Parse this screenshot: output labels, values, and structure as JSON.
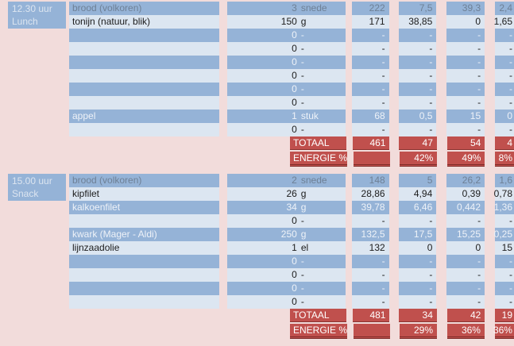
{
  "palette": {
    "background": "#f2dcdb",
    "row_dark": "#95b3d7",
    "row_light": "#dce6f1",
    "total_red": "#c0504d",
    "total_border": "#7e2b28",
    "text_on_dark": "#eef2f8",
    "text_on_light": "#1c1c1c",
    "text_muted": "#6e8096"
  },
  "sections": [
    {
      "time": "12.30 uur",
      "meal": "Lunch",
      "rows": [
        {
          "name": "brood (volkoren)",
          "qty": "3",
          "unit": "snede",
          "vals": [
            "222",
            "7,5",
            "39,3",
            "2,4"
          ],
          "shade": "dark",
          "muted": true
        },
        {
          "name": "tonijn (natuur, blik)",
          "qty": "150",
          "unit": "g",
          "vals": [
            "171",
            "38,85",
            "0",
            "1,65"
          ],
          "shade": "light",
          "muted": false
        },
        {
          "name": "",
          "qty": "0",
          "unit": "-",
          "vals": [
            "-",
            "-",
            "-",
            "-"
          ],
          "shade": "dark",
          "muted": false
        },
        {
          "name": "",
          "qty": "0",
          "unit": "-",
          "vals": [
            "-",
            "-",
            "-",
            "-"
          ],
          "shade": "light",
          "muted": false
        },
        {
          "name": "",
          "qty": "0",
          "unit": "-",
          "vals": [
            "-",
            "-",
            "-",
            "-"
          ],
          "shade": "dark",
          "muted": false
        },
        {
          "name": "",
          "qty": "0",
          "unit": "-",
          "vals": [
            "-",
            "-",
            "-",
            "-"
          ],
          "shade": "light",
          "muted": false
        },
        {
          "name": "",
          "qty": "0",
          "unit": "-",
          "vals": [
            "-",
            "-",
            "-",
            "-"
          ],
          "shade": "dark",
          "muted": false
        },
        {
          "name": "",
          "qty": "0",
          "unit": "-",
          "vals": [
            "-",
            "-",
            "-",
            "-"
          ],
          "shade": "light",
          "muted": false
        },
        {
          "name": "appel",
          "qty": "1",
          "unit": "stuk",
          "vals": [
            "68",
            "0,5",
            "15",
            "0"
          ],
          "shade": "dark",
          "muted": false
        },
        {
          "name": "",
          "qty": "0",
          "unit": "-",
          "vals": [
            "-",
            "-",
            "-",
            "-"
          ],
          "shade": "light",
          "muted": false
        }
      ],
      "total_label": "TOTAAL",
      "total_vals": [
        "461",
        "47",
        "54",
        "4"
      ],
      "energy_label": "ENERGIE %",
      "energy_vals": [
        "",
        "42%",
        "49%",
        "8%"
      ]
    },
    {
      "time": "15.00 uur",
      "meal": "Snack",
      "rows": [
        {
          "name": "brood (volkoren)",
          "qty": "2",
          "unit": "snede",
          "vals": [
            "148",
            "5",
            "26,2",
            "1,6"
          ],
          "shade": "dark",
          "muted": true
        },
        {
          "name": "kipfilet",
          "qty": "26",
          "unit": "g",
          "vals": [
            "28,86",
            "4,94",
            "0,39",
            "0,78"
          ],
          "shade": "light",
          "muted": false
        },
        {
          "name": "kalkoenfilet",
          "qty": "34",
          "unit": "g",
          "vals": [
            "39,78",
            "6,46",
            "0,442",
            "1,36"
          ],
          "shade": "dark",
          "muted": false
        },
        {
          "name": "",
          "qty": "0",
          "unit": "-",
          "vals": [
            "-",
            "-",
            "-",
            "-"
          ],
          "shade": "light",
          "muted": false
        },
        {
          "name": "kwark (Mager - Aldi)",
          "qty": "250",
          "unit": "g",
          "vals": [
            "132,5",
            "17,5",
            "15,25",
            "0,25"
          ],
          "shade": "dark",
          "muted": false
        },
        {
          "name": "lijnzaadolie",
          "qty": "1",
          "unit": "el",
          "vals": [
            "132",
            "0",
            "0",
            "15"
          ],
          "shade": "light",
          "muted": false
        },
        {
          "name": "",
          "qty": "0",
          "unit": "-",
          "vals": [
            "-",
            "-",
            "-",
            "-"
          ],
          "shade": "dark",
          "muted": false
        },
        {
          "name": "",
          "qty": "0",
          "unit": "-",
          "vals": [
            "-",
            "-",
            "-",
            "-"
          ],
          "shade": "light",
          "muted": false
        },
        {
          "name": "",
          "qty": "0",
          "unit": "-",
          "vals": [
            "-",
            "-",
            "-",
            "-"
          ],
          "shade": "dark",
          "muted": false
        },
        {
          "name": "",
          "qty": "0",
          "unit": "-",
          "vals": [
            "-",
            "-",
            "-",
            "-"
          ],
          "shade": "light",
          "muted": false
        }
      ],
      "total_label": "TOTAAL",
      "total_vals": [
        "481",
        "34",
        "42",
        "19"
      ],
      "energy_label": "ENERGIE %",
      "energy_vals": [
        "",
        "29%",
        "36%",
        "36%"
      ]
    }
  ]
}
